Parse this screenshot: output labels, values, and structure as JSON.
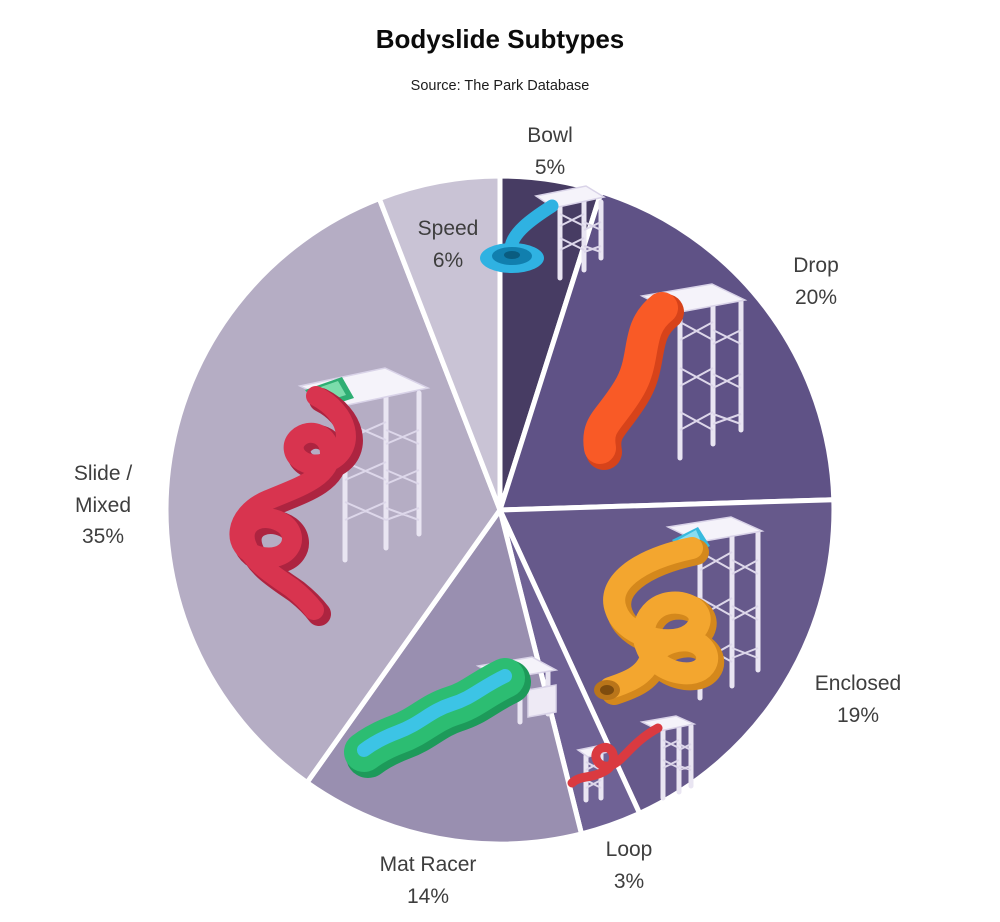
{
  "chart_data": {
    "type": "pie",
    "title": "Bodyslide Subtypes",
    "subtitle": "Source: The Park Database",
    "unit": "percent",
    "start_angle_deg": 0,
    "direction": "clockwise",
    "legend_position": "labels-around-pie",
    "categories": [
      "Bowl",
      "Drop",
      "Enclosed",
      "Loop",
      "Mat Racer",
      "Slide / Mixed",
      "Speed"
    ],
    "values": [
      5,
      20,
      19,
      3,
      14,
      35,
      6
    ],
    "slices": [
      {
        "id": "bowl",
        "label": "Bowl",
        "pct": "5%",
        "value": 5,
        "color": "#473c63",
        "icon": "bowl-slide-icon",
        "icon_color": "#2fb2e2"
      },
      {
        "id": "drop",
        "label": "Drop",
        "pct": "20%",
        "value": 20,
        "color": "#5f5286",
        "icon": "drop-slide-icon",
        "icon_color": "#f95a26"
      },
      {
        "id": "enclosed",
        "label": "Enclosed",
        "pct": "19%",
        "value": 19,
        "color": "#66598b",
        "icon": "enclosed-slide-icon",
        "icon_color": "#f3a62f"
      },
      {
        "id": "loop",
        "label": "Loop",
        "pct": "3%",
        "value": 3,
        "color": "#6f6295",
        "icon": "loop-slide-icon",
        "icon_color": "#da3a40"
      },
      {
        "id": "mat_racer",
        "label": "Mat Racer",
        "pct": "14%",
        "value": 14,
        "color": "#998fb0",
        "icon": "mat-racer-slide-icon",
        "icon_color": "#2cbd72"
      },
      {
        "id": "slide_mixed",
        "label": "Slide /\nMixed",
        "pct": "35%",
        "value": 35,
        "color": "#b5adc4",
        "icon": "spiral-slide-icon",
        "icon_color": "#d8344f"
      },
      {
        "id": "speed",
        "label": "Speed",
        "pct": "6%",
        "value": 6,
        "color": "#c9c3d5",
        "icon": "speed-slide-icon",
        "icon_color": null
      }
    ],
    "separator_color": "#ffffff",
    "label_text_color": "#3e3e3e"
  }
}
